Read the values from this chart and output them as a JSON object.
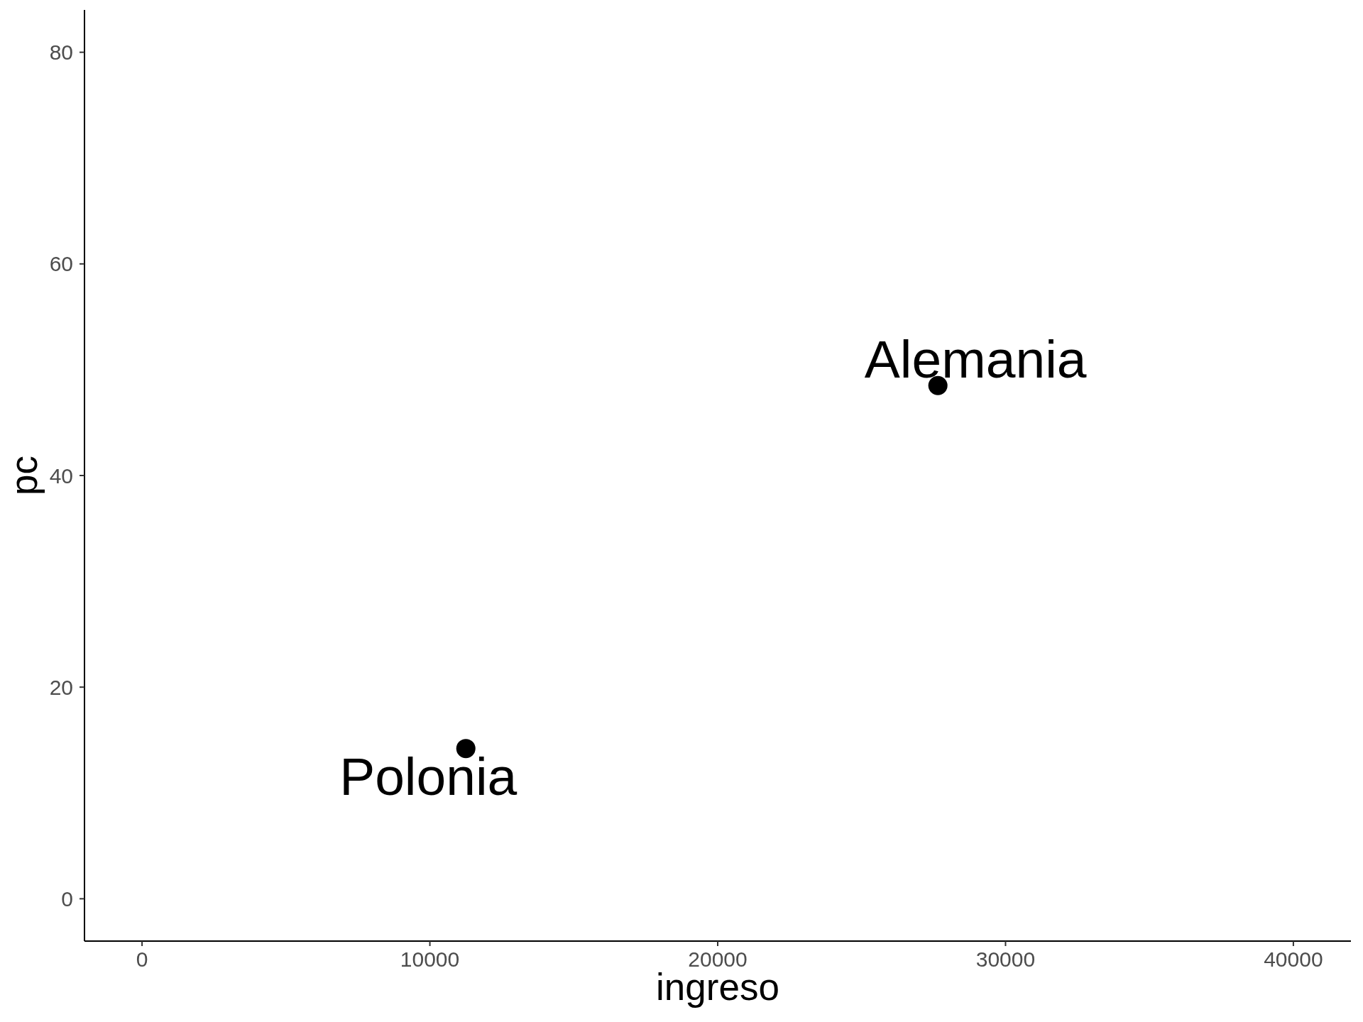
{
  "chart_data": {
    "type": "scatter",
    "xlabel": "ingreso",
    "ylabel": "pc",
    "x": [
      11250,
      27650
    ],
    "values": [
      14.2,
      48.5
    ],
    "color": "#000000",
    "marker": "circle",
    "xlim": [
      -2000,
      42000
    ],
    "xticks": [
      0,
      10000,
      20000,
      30000,
      40000
    ],
    "ylim": [
      -4,
      84
    ],
    "yticks": [
      0,
      20,
      40,
      60,
      80
    ],
    "annotations": [
      {
        "text": "Polonia",
        "x": 11250,
        "y": 14.2
      },
      {
        "text": "Alemania",
        "x": 27650,
        "y": 48.5
      }
    ]
  }
}
